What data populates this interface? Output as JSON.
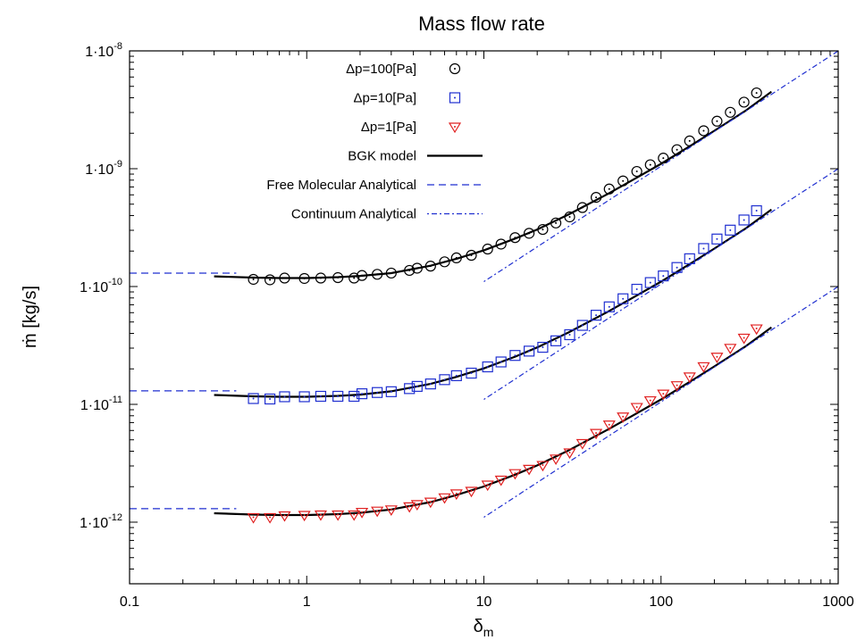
{
  "chart_data": {
    "type": "line",
    "title": "Mass flow rate",
    "xlabel": "δ",
    "xlabel_sub": "m",
    "ylabel": "ṁ [kg/s]",
    "xscale": "log",
    "yscale": "log",
    "xlim": [
      0.1,
      1000
    ],
    "ylim": [
      3e-13,
      1e-08
    ],
    "grid": false,
    "legend_position": "top-center",
    "x_ticks": [
      {
        "value": 0.1,
        "label": "0.1"
      },
      {
        "value": 1,
        "label": "1"
      },
      {
        "value": 10,
        "label": "10"
      },
      {
        "value": 100,
        "label": "100"
      },
      {
        "value": 1000,
        "label": "1000"
      }
    ],
    "y_ticks": [
      {
        "value": 1e-12,
        "mant": "1·10",
        "exp": "-12"
      },
      {
        "value": 1e-11,
        "mant": "1·10",
        "exp": "-11"
      },
      {
        "value": 1e-10,
        "mant": "1·10",
        "exp": "-10"
      },
      {
        "value": 1e-09,
        "mant": "1·10",
        "exp": "-9"
      },
      {
        "value": 1e-08,
        "mant": "1·10",
        "exp": "-8"
      }
    ],
    "series": [
      {
        "name": "Δp=100[Pa]",
        "kind": "marker",
        "marker": "circle-dot",
        "color": "#000000",
        "x": [
          0.5,
          0.62,
          0.75,
          0.97,
          1.2,
          1.5,
          1.85,
          2.05,
          2.5,
          3.0,
          3.8,
          4.2,
          5.0,
          6.0,
          7.0,
          8.5,
          10.5,
          12.5,
          15.0,
          18.0,
          21.5,
          25.5,
          30.5,
          36.0,
          43.0,
          51.0,
          61.0,
          73.0,
          87.0,
          103.0,
          123.0,
          145.0,
          174.0,
          207.0,
          246.0,
          294.0,
          346.0
        ],
        "y": [
          1.15e-10,
          1.14e-10,
          1.18e-10,
          1.17e-10,
          1.18e-10,
          1.19e-10,
          1.18e-10,
          1.24e-10,
          1.27e-10,
          1.3e-10,
          1.37e-10,
          1.43e-10,
          1.49e-10,
          1.62e-10,
          1.75e-10,
          1.84e-10,
          2.08e-10,
          2.29e-10,
          2.6e-10,
          2.83e-10,
          3.05e-10,
          3.46e-10,
          3.9e-10,
          4.68e-10,
          5.71e-10,
          6.72e-10,
          7.87e-10,
          9.48e-10,
          1.08e-09,
          1.23e-09,
          1.45e-09,
          1.72e-09,
          2.1e-09,
          2.53e-09,
          3.01e-09,
          3.67e-09,
          4.4e-09
        ]
      },
      {
        "name": "Δp=10[Pa]",
        "kind": "marker",
        "marker": "square-dot",
        "color": "#1f2fd0",
        "x": [
          0.5,
          0.62,
          0.75,
          0.97,
          1.2,
          1.5,
          1.85,
          2.05,
          2.5,
          3.0,
          3.8,
          4.2,
          5.0,
          6.0,
          7.0,
          8.5,
          10.5,
          12.5,
          15.0,
          18.0,
          21.5,
          25.5,
          30.5,
          36.0,
          43.0,
          51.0,
          61.0,
          73.0,
          87.0,
          103.0,
          123.0,
          145.0,
          174.0,
          207.0,
          246.0,
          294.0,
          346.0
        ],
        "y": [
          1.12e-11,
          1.11e-11,
          1.16e-11,
          1.16e-11,
          1.17e-11,
          1.17e-11,
          1.17e-11,
          1.23e-11,
          1.26e-11,
          1.28e-11,
          1.36e-11,
          1.42e-11,
          1.49e-11,
          1.62e-11,
          1.75e-11,
          1.84e-11,
          2.08e-11,
          2.29e-11,
          2.6e-11,
          2.83e-11,
          3.05e-11,
          3.46e-11,
          3.9e-11,
          4.68e-11,
          5.71e-11,
          6.72e-11,
          7.87e-11,
          9.48e-11,
          1.08e-10,
          1.23e-10,
          1.45e-10,
          1.72e-10,
          2.1e-10,
          2.53e-10,
          3.01e-10,
          3.67e-10,
          4.4e-10
        ]
      },
      {
        "name": "Δp=1[Pa]",
        "kind": "marker",
        "marker": "triangle-down-dot",
        "color": "#e02020",
        "x": [
          0.5,
          0.62,
          0.75,
          0.97,
          1.2,
          1.5,
          1.85,
          2.05,
          2.5,
          3.0,
          3.8,
          4.2,
          5.0,
          6.0,
          7.0,
          8.5,
          10.5,
          12.5,
          15.0,
          18.0,
          21.5,
          25.5,
          30.5,
          36.0,
          43.0,
          51.0,
          61.0,
          73.0,
          87.0,
          103.0,
          123.0,
          145.0,
          174.0,
          207.0,
          246.0,
          294.0,
          346.0
        ],
        "y": [
          1.1e-12,
          1.1e-12,
          1.14e-12,
          1.15e-12,
          1.16e-12,
          1.16e-12,
          1.16e-12,
          1.22e-12,
          1.25e-12,
          1.28e-12,
          1.36e-12,
          1.42e-12,
          1.49e-12,
          1.62e-12,
          1.75e-12,
          1.84e-12,
          2.08e-12,
          2.29e-12,
          2.6e-12,
          2.83e-12,
          3.05e-12,
          3.46e-12,
          3.9e-12,
          4.68e-12,
          5.71e-12,
          6.72e-12,
          7.87e-12,
          9.48e-12,
          1.08e-11,
          1.23e-11,
          1.45e-11,
          1.72e-11,
          2.1e-11,
          2.53e-11,
          3.01e-11,
          3.67e-11,
          4.4e-11
        ]
      },
      {
        "name": "BGK model",
        "kind": "line",
        "color": "#000000",
        "dash": "",
        "groups": [
          {
            "x": [
              0.3,
              0.5,
              0.7,
              1.0,
              1.5,
              2.0,
              3.0,
              5.0,
              7.0,
              10.0,
              15.0,
              20.0,
              30.0,
              50.0,
              70.0,
              100.0,
              150.0,
              200.0,
              300.0,
              420.0
            ],
            "y": [
              1.22e-10,
              1.19e-10,
              1.18e-10,
              1.18e-10,
              1.2e-10,
              1.23e-10,
              1.3e-10,
              1.5e-10,
              1.72e-10,
              2.03e-10,
              2.55e-10,
              3.05e-10,
              4.08e-10,
              6.1e-10,
              8.1e-10,
              1.1e-09,
              1.6e-09,
              2.1e-09,
              3.1e-09,
              4.5e-09
            ]
          },
          {
            "x": [
              0.3,
              0.5,
              0.7,
              1.0,
              1.5,
              2.0,
              3.0,
              5.0,
              7.0,
              10.0,
              15.0,
              20.0,
              30.0,
              50.0,
              70.0,
              100.0,
              150.0,
              200.0,
              300.0,
              420.0
            ],
            "y": [
              1.2e-11,
              1.17e-11,
              1.16e-11,
              1.16e-11,
              1.18e-11,
              1.21e-11,
              1.29e-11,
              1.49e-11,
              1.71e-11,
              2.02e-11,
              2.54e-11,
              3.04e-11,
              4.07e-11,
              6.1e-11,
              8.1e-11,
              1.1e-10,
              1.6e-10,
              2.1e-10,
              3.1e-10,
              4.5e-10
            ]
          },
          {
            "x": [
              0.3,
              0.5,
              0.7,
              1.0,
              1.5,
              2.0,
              3.0,
              5.0,
              7.0,
              10.0,
              15.0,
              20.0,
              30.0,
              50.0,
              70.0,
              100.0,
              150.0,
              200.0,
              300.0,
              420.0
            ],
            "y": [
              1.19e-12,
              1.16e-12,
              1.15e-12,
              1.15e-12,
              1.17e-12,
              1.2e-12,
              1.28e-12,
              1.48e-12,
              1.7e-12,
              2.01e-12,
              2.53e-12,
              3.03e-12,
              4.06e-12,
              6.1e-12,
              8.1e-12,
              1.1e-11,
              1.6e-11,
              2.1e-11,
              3.1e-11,
              4.5e-11
            ]
          }
        ]
      },
      {
        "name": "Free Molecular Analytical",
        "kind": "line",
        "color": "#1f2fd0",
        "dash": "8,5",
        "groups": [
          {
            "x": [
              0.1,
              0.4
            ],
            "y": [
              1.3e-10,
              1.3e-10
            ]
          },
          {
            "x": [
              0.1,
              0.4
            ],
            "y": [
              1.3e-11,
              1.3e-11
            ]
          },
          {
            "x": [
              0.1,
              0.4
            ],
            "y": [
              1.3e-12,
              1.3e-12
            ]
          }
        ]
      },
      {
        "name": "Continuum Analytical",
        "kind": "line",
        "color": "#1f2fd0",
        "dash": "2,3,6,3",
        "groups": [
          {
            "x": [
              10.0,
              1000.0
            ],
            "y": [
              1.1e-10,
              1e-08
            ]
          },
          {
            "x": [
              10.0,
              1000.0
            ],
            "y": [
              1.1e-11,
              1e-09
            ]
          },
          {
            "x": [
              10.0,
              1000.0
            ],
            "y": [
              1.1e-12,
              1e-10
            ]
          }
        ]
      }
    ]
  }
}
